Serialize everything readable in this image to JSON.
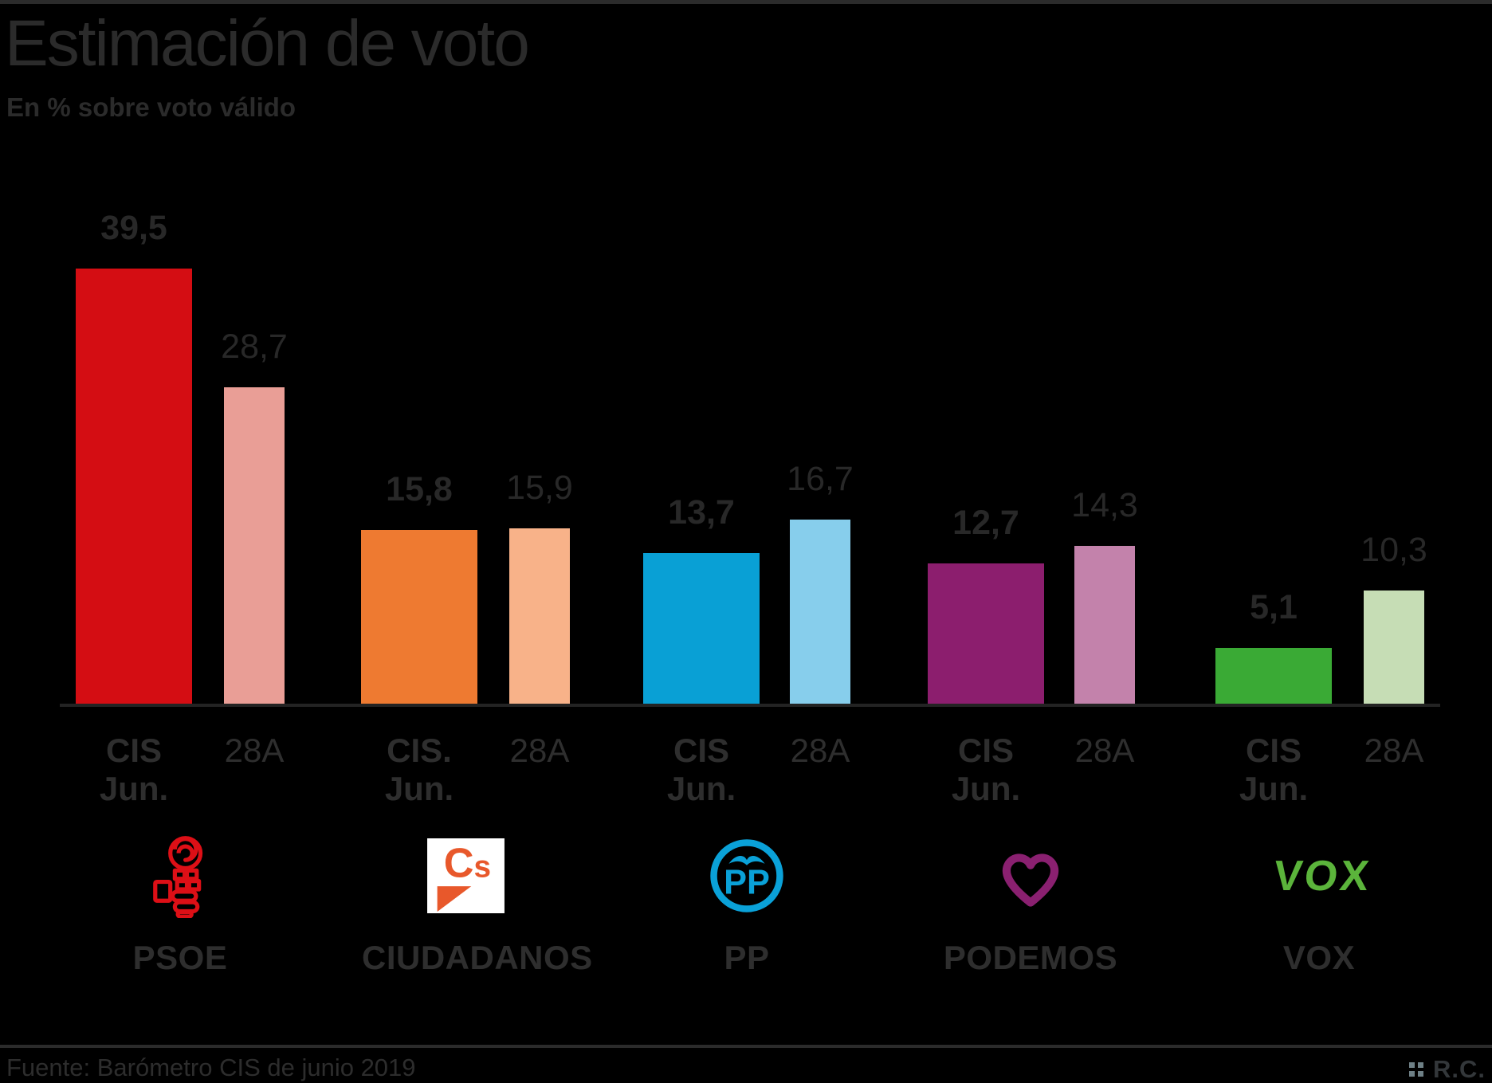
{
  "header": {
    "title": "Estimación de voto",
    "subtitle": "En % sobre voto válido"
  },
  "footer": {
    "source": "Fuente: Barómetro CIS de junio 2019",
    "credit": "R.C."
  },
  "chart_data": {
    "type": "bar",
    "title": "Estimación de voto",
    "subtitle": "En % sobre voto válido",
    "unit": "% sobre voto válido",
    "categories": [
      "PSOE",
      "CIUDADANOS",
      "PP",
      "PODEMOS",
      "VOX"
    ],
    "series": [
      {
        "name": "CIS Jun.",
        "values": [
          39.5,
          15.8,
          13.7,
          12.7,
          5.1
        ]
      },
      {
        "name": "28A",
        "values": [
          28.7,
          15.9,
          16.7,
          14.3,
          10.3
        ]
      }
    ],
    "value_label_decimal_separator": ",",
    "tick_labels": [
      {
        "cis": "CIS",
        "jun": "Jun.",
        "a28": "28A"
      },
      {
        "cis": "CIS.",
        "jun": "Jun.",
        "a28": "28A"
      },
      {
        "cis": "CIS",
        "jun": "Jun.",
        "a28": "28A"
      },
      {
        "cis": "CIS",
        "jun": "Jun.",
        "a28": "28A"
      },
      {
        "cis": "CIS",
        "jun": "Jun.",
        "a28": "28A"
      }
    ],
    "colors": [
      {
        "party": "PSOE",
        "cis": "#d40d13",
        "a28": "#e99e96"
      },
      {
        "party": "CIUDADANOS",
        "cis": "#ee7a31",
        "a28": "#f8b289"
      },
      {
        "party": "PP",
        "cis": "#09a0d5",
        "a28": "#87ceec"
      },
      {
        "party": "PODEMOS",
        "cis": "#8c1e6e",
        "a28": "#c382ab"
      },
      {
        "party": "VOX",
        "cis": "#3aaa35",
        "a28": "#c6ddb5"
      }
    ],
    "logo_colors": {
      "psoe": "#dd0f16",
      "ciudadanos": "#e8582b",
      "pp": "#0aa1d8",
      "podemos": "#8a2070",
      "vox": "#5bb43b"
    },
    "ylim": [
      0,
      42
    ],
    "grid": false,
    "legend": "none"
  }
}
